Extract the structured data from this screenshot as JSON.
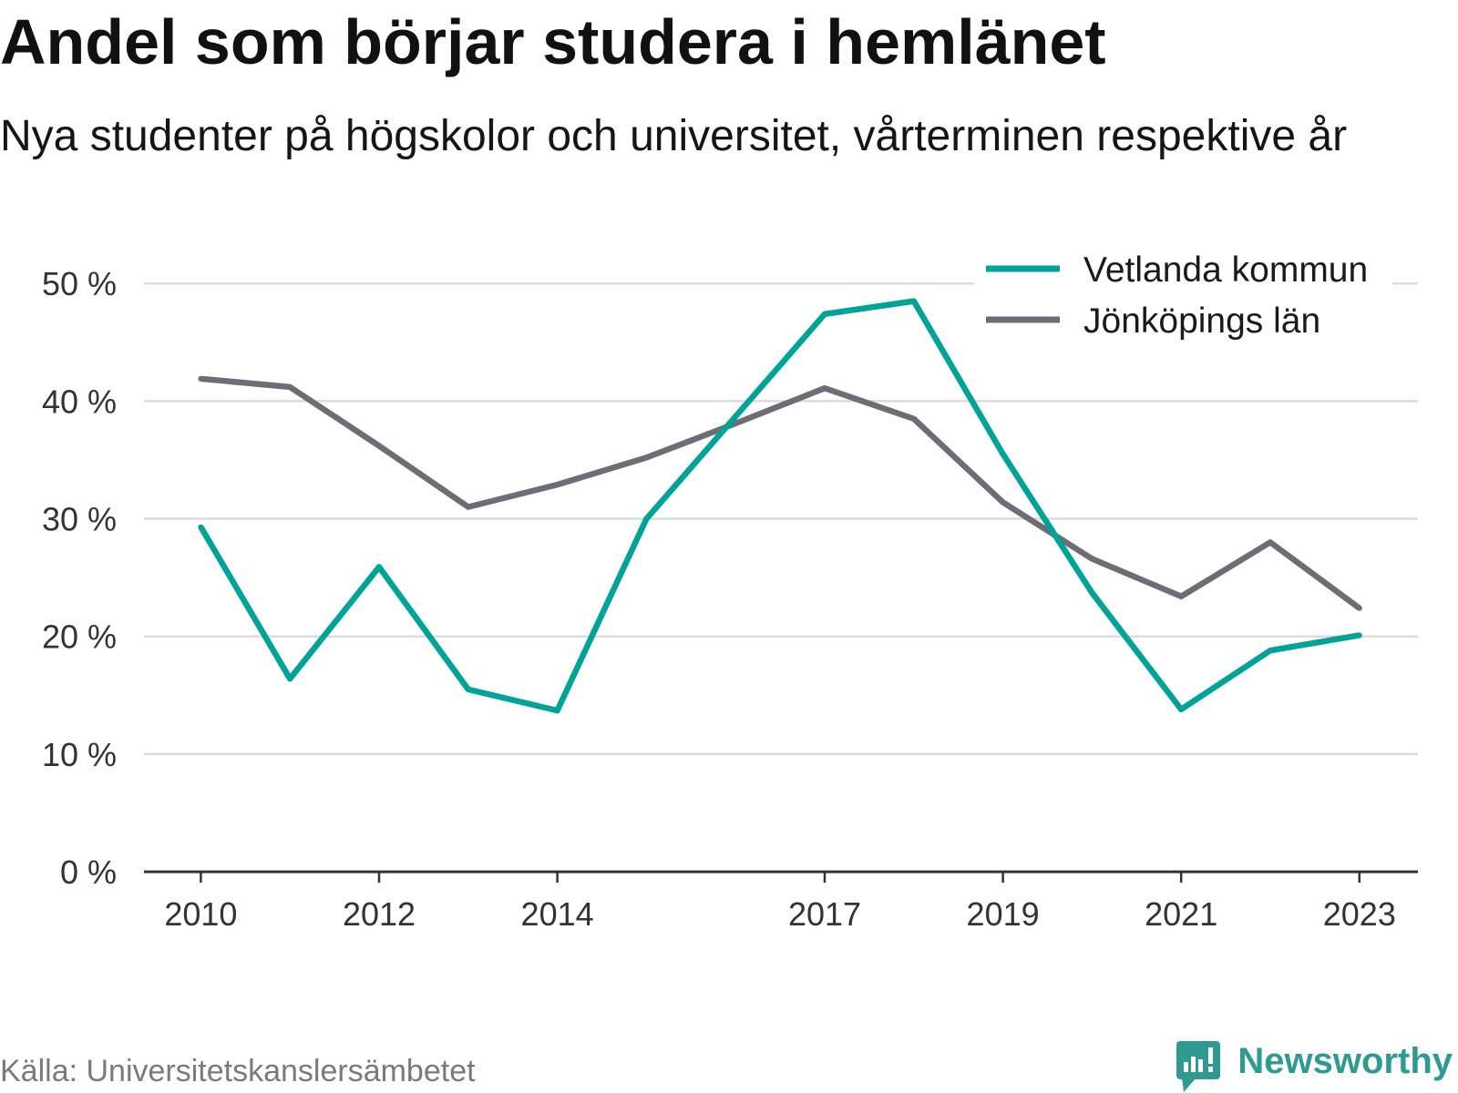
{
  "source": "Källa: Universitetskanslersämbetet",
  "brand": {
    "name": "Newsworthy",
    "icon": "newsworthy-logo-icon",
    "color": "#2f9a92"
  },
  "chart_data": {
    "type": "line",
    "title": "Andel som börjar studera i hemlänet",
    "subtitle": "Nya studenter på högskolor och universitet, vårterminen respektive år",
    "x": [
      2010,
      2011,
      2012,
      2013,
      2014,
      2015,
      2016,
      2017,
      2018,
      2019,
      2020,
      2021,
      2022,
      2023
    ],
    "xticks": [
      2010,
      2012,
      2014,
      2017,
      2019,
      2021,
      2023
    ],
    "xlim": [
      2010,
      2023
    ],
    "yticks": [
      0,
      10,
      20,
      30,
      40,
      50
    ],
    "ytick_labels": [
      "0 %",
      "10 %",
      "20 %",
      "30 %",
      "40 %",
      "50 %"
    ],
    "ylim": [
      0,
      50
    ],
    "grid": true,
    "legend": "top-right",
    "series": [
      {
        "name": "Vetlanda kommun",
        "color": "#00a398",
        "values": [
          29.3,
          16.4,
          25.9,
          15.5,
          13.7,
          30.0,
          38.7,
          47.4,
          48.5,
          35.5,
          23.7,
          13.8,
          18.8,
          20.1
        ]
      },
      {
        "name": "Jönköpings län",
        "color": "#6e6d75",
        "values": [
          41.9,
          41.2,
          36.2,
          31.0,
          32.9,
          35.2,
          38.1,
          41.1,
          38.5,
          31.4,
          26.6,
          23.4,
          28.0,
          22.4
        ]
      }
    ]
  }
}
